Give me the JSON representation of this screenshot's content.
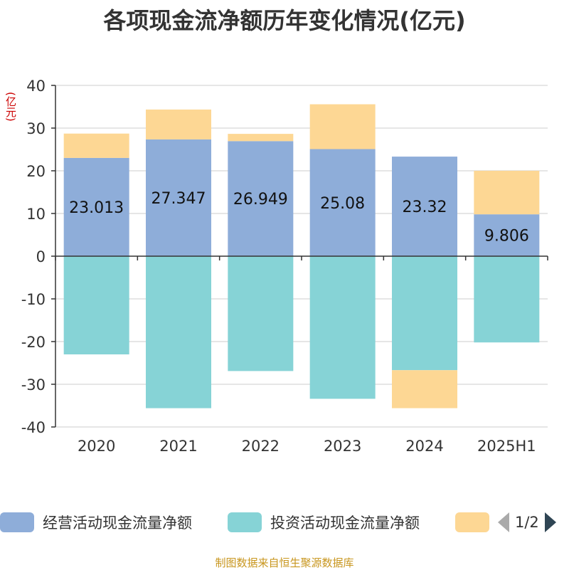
{
  "title": "各项现金流净额历年变化情况(亿元)",
  "y_unit": "(亿元)",
  "source": "制图数据来自恒生聚源数据库",
  "colors": {
    "operating": "#8eadd9",
    "investing": "#86d3d6",
    "financing": "#fdd794",
    "grid": "#cccccc",
    "axis": "#333333"
  },
  "chart_data": {
    "type": "bar",
    "stacked": true,
    "categories": [
      "2020",
      "2021",
      "2022",
      "2023",
      "2024",
      "2025H1"
    ],
    "ylim": [
      -40,
      40
    ],
    "yticks": [
      40,
      30,
      20,
      10,
      0,
      -10,
      -20,
      -30,
      -40
    ],
    "grid": true,
    "legend_position": "bottom",
    "series": [
      {
        "name": "经营活动现金流量净额",
        "values": [
          23.013,
          27.347,
          26.949,
          25.08,
          23.32,
          9.806
        ],
        "labels": [
          "23.013",
          "27.347",
          "26.949",
          "25.08",
          "23.32",
          "9.806"
        ]
      },
      {
        "name": "投资活动现金流量净额",
        "values": [
          -23.0,
          -35.6,
          -26.9,
          -33.4,
          -26.7,
          -20.2
        ]
      },
      {
        "name": "",
        "values": [
          5.7,
          7.0,
          1.7,
          10.5,
          -8.9,
          10.2
        ]
      }
    ]
  },
  "legend": {
    "items": [
      "经营活动现金流量净额",
      "投资活动现金流量净额",
      ""
    ],
    "page": "1/2"
  }
}
